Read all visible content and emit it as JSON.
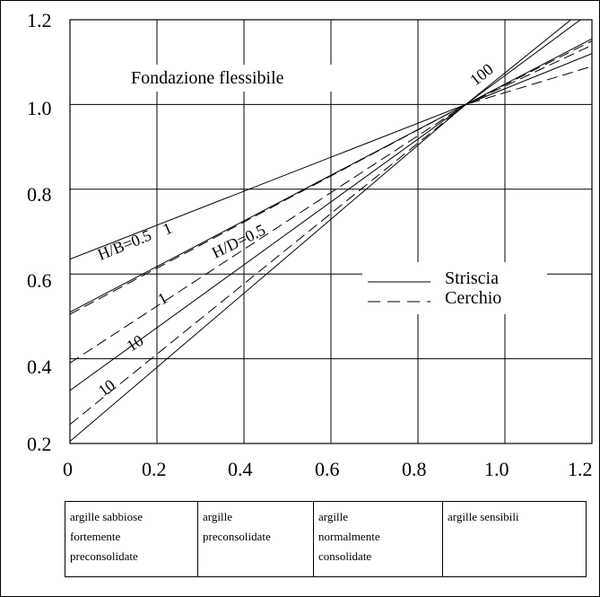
{
  "chart_data": {
    "type": "line",
    "title": "Fondazione flessibile",
    "xlabel": "",
    "ylabel": "",
    "xlim": [
      0,
      1.2
    ],
    "ylim": [
      0.2,
      1.2
    ],
    "grid": true,
    "x_ticks": [
      "0",
      "0.2",
      "0.4",
      "0.6",
      "0.8",
      "1.0",
      "1.2"
    ],
    "y_ticks": [
      "0.2",
      "0.4",
      "0.6",
      "0.8",
      "1.0",
      "1.2"
    ],
    "legend": {
      "placement": "center-right",
      "entries": [
        {
          "name": "Striscia",
          "style": "solid"
        },
        {
          "name": "Cerchio",
          "style": "dashed"
        }
      ]
    },
    "series": [
      {
        "label": "H/B=0.5",
        "style": "solid",
        "x": [
          0,
          0.91,
          1.2
        ],
        "y": [
          0.635,
          1.0,
          1.12
        ]
      },
      {
        "label": "1",
        "style": "solid",
        "x": [
          0,
          0.91,
          1.2
        ],
        "y": [
          0.51,
          1.0,
          1.155
        ]
      },
      {
        "label": "10",
        "style": "solid",
        "x": [
          0,
          0.91,
          1.2
        ],
        "y": [
          0.325,
          1.0,
          1.22
        ]
      },
      {
        "label": "100",
        "style": "solid",
        "x": [
          0,
          0.91,
          1.2
        ],
        "y": [
          0.205,
          1.0,
          1.24
        ]
      },
      {
        "label": "H/D=0.5",
        "style": "dashed",
        "x": [
          0,
          0.91,
          1.2
        ],
        "y": [
          0.505,
          1.0,
          1.09
        ]
      },
      {
        "label": "1",
        "style": "dashed",
        "x": [
          0,
          0.91,
          1.2
        ],
        "y": [
          0.39,
          1.0,
          1.14
        ]
      },
      {
        "label": "10",
        "style": "dashed",
        "x": [
          0,
          0.91,
          1.2
        ],
        "y": [
          0.245,
          1.0,
          1.15
        ]
      }
    ],
    "curve_labels": [
      "H/B=0.5",
      "1",
      "H/D=0.5",
      "1",
      "10",
      "10",
      "100"
    ]
  },
  "soil_table": [
    [
      "argille sabbiose",
      "fortemente",
      "preconsolidate"
    ],
    [
      "argille",
      "preconsolidate"
    ],
    [
      "argille",
      "normalmente",
      "consolidate"
    ],
    [
      "argille sensibili"
    ]
  ]
}
